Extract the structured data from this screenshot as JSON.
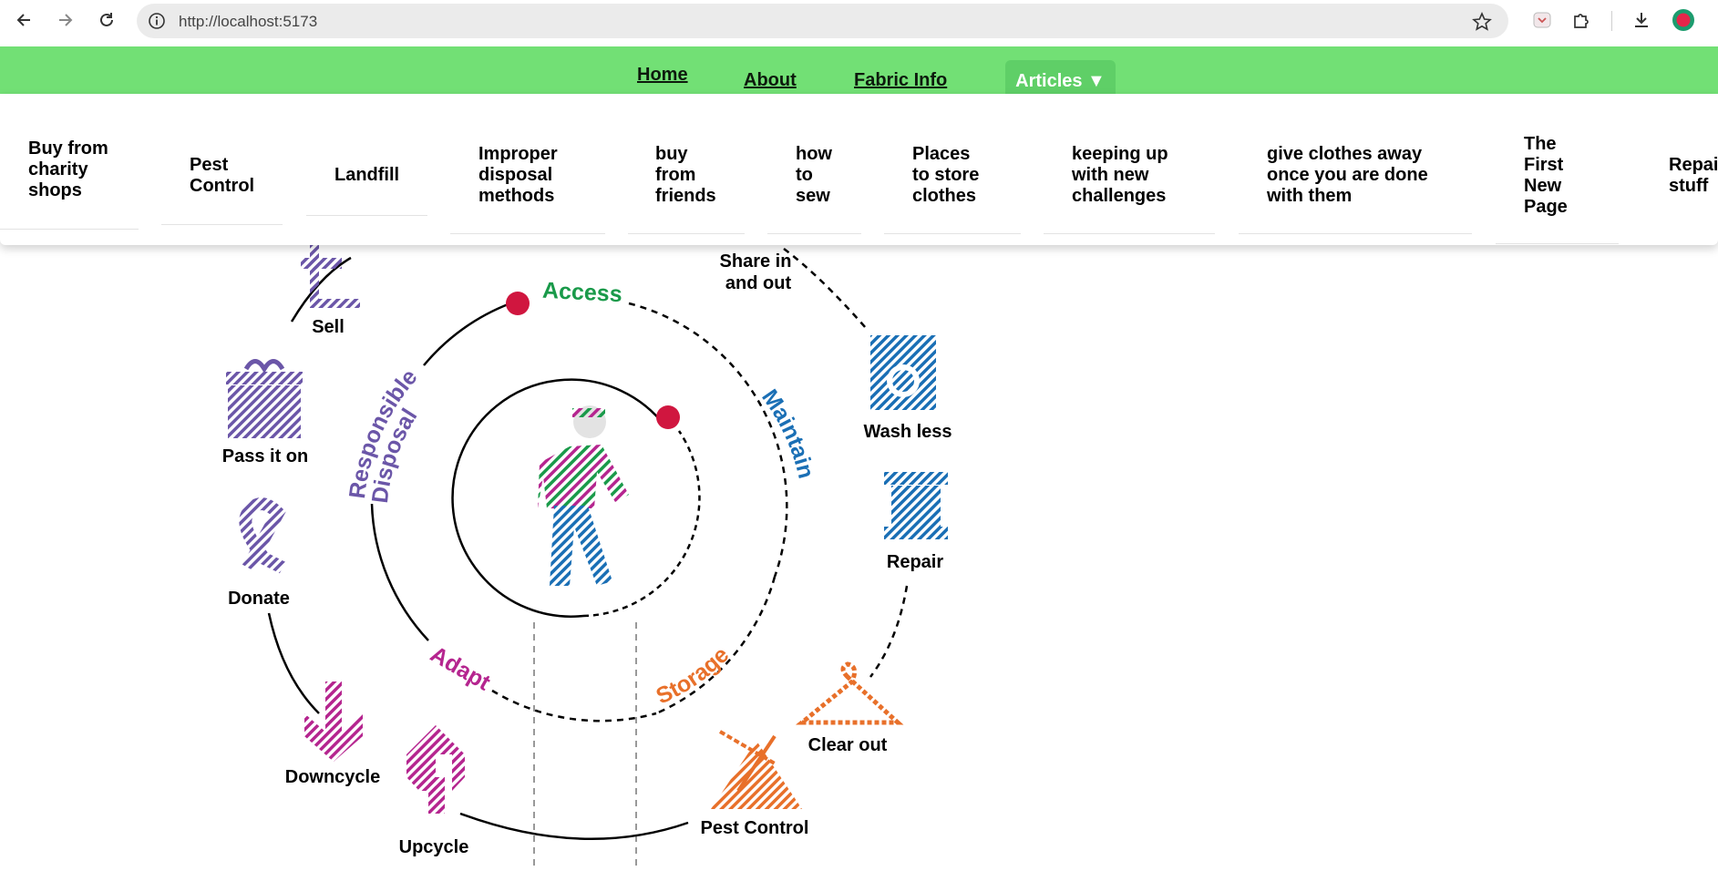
{
  "browser": {
    "url": "http://localhost:5173",
    "icons": [
      "back-arrow-icon",
      "forward-arrow-icon",
      "reload-icon",
      "site-info-icon",
      "bookmark-star-icon",
      "pocket-icon",
      "extensions-puzzle-icon",
      "download-icon",
      "profile-avatar-icon"
    ]
  },
  "site_nav": {
    "home": "Home",
    "about": "About",
    "fabric_info": "Fabric Info",
    "articles": "Articles ▼"
  },
  "dropdown": {
    "items": [
      {
        "label": "Buy from\ncharity\nshops"
      },
      {
        "label": "Pest\nControl"
      },
      {
        "label": "Landfill"
      },
      {
        "label": "Improper\ndisposal\nmethods"
      },
      {
        "label": "buy\nfrom\nfriends"
      },
      {
        "label": "how\nto\nsew"
      },
      {
        "label": "Places\nto store\nclothes"
      },
      {
        "label": "keeping up\nwith new\nchallenges"
      },
      {
        "label": "give clothes away\nonce you are done\nwith them"
      },
      {
        "label": "The\nFirst\nNew\nPage"
      },
      {
        "label": "Repai\nstuff"
      }
    ]
  },
  "diagram": {
    "arc_labels": {
      "access": "Access",
      "maintain": "Maintain",
      "storage": "Storage",
      "adapt": "Adapt",
      "responsible": "Responsible",
      "disposal": "Disposal"
    },
    "icons": {
      "sell": "Sell",
      "pass_it_on": "Pass it on",
      "donate": "Donate",
      "downcycle": "Downcycle",
      "upcycle": "Upcycle",
      "pest_control": "Pest Control",
      "clear_out": "Clear out",
      "repair": "Repair",
      "wash_less": "Wash less",
      "share_line1": "Share in",
      "share_line2": "and out"
    },
    "colors": {
      "access": "#1a9a4a",
      "maintain": "#1a6fb5",
      "storage": "#e8702a",
      "adapt": "#b5258f",
      "disposal": "#6b56a8",
      "dot": "#d0163f",
      "nav_green": "#72e075"
    }
  }
}
